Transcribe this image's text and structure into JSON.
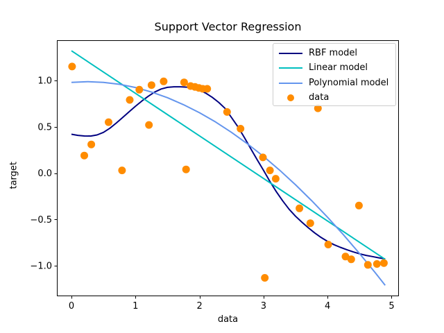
{
  "figure": {
    "background": "#ffffff",
    "text_color": "#000000",
    "spine_color": "#000000"
  },
  "legend": {
    "position": "upper right",
    "border_color": "#cccccc",
    "items": [
      {
        "label": "RBF model",
        "marker": "line",
        "color": "#000080"
      },
      {
        "label": "Linear model",
        "marker": "line",
        "color": "#00bfbf"
      },
      {
        "label": "Polynomial model",
        "marker": "line",
        "color": "#6495ed"
      },
      {
        "label": "data",
        "marker": "dot",
        "color": "#ff8c00"
      }
    ]
  },
  "chart_data": {
    "type": "line",
    "title": "Support Vector Regression",
    "xlabel": "data",
    "ylabel": "target",
    "grid": false,
    "legend_position": "upper right",
    "xlim": [
      -0.2275,
      5.114
    ],
    "ylim": [
      -1.328,
      1.434
    ],
    "x_ticks": [
      0,
      1,
      2,
      3,
      4,
      5
    ],
    "x_tick_labels": [
      "0",
      "1",
      "2",
      "3",
      "4",
      "5"
    ],
    "y_ticks": [
      1.0,
      0.5,
      0.0,
      -0.5,
      -1.0
    ],
    "y_tick_labels": [
      "1.0",
      "0.5",
      "0.0",
      "−0.5",
      "−1.0"
    ],
    "series": [
      {
        "name": "RBF model",
        "type": "line",
        "color": "#000080",
        "linewidth": 2,
        "points": [
          [
            0.0,
            0.42
          ],
          [
            0.1,
            0.408
          ],
          [
            0.2,
            0.401
          ],
          [
            0.3,
            0.4
          ],
          [
            0.4,
            0.412
          ],
          [
            0.5,
            0.44
          ],
          [
            0.6,
            0.485
          ],
          [
            0.7,
            0.54
          ],
          [
            0.8,
            0.6
          ],
          [
            0.9,
            0.662
          ],
          [
            1.0,
            0.722
          ],
          [
            1.1,
            0.778
          ],
          [
            1.2,
            0.83
          ],
          [
            1.3,
            0.875
          ],
          [
            1.4,
            0.908
          ],
          [
            1.5,
            0.926
          ],
          [
            1.6,
            0.932
          ],
          [
            1.7,
            0.932
          ],
          [
            1.8,
            0.928
          ],
          [
            1.9,
            0.916
          ],
          [
            2.0,
            0.895
          ],
          [
            2.1,
            0.862
          ],
          [
            2.2,
            0.818
          ],
          [
            2.3,
            0.763
          ],
          [
            2.4,
            0.698
          ],
          [
            2.5,
            0.6
          ],
          [
            2.6,
            0.5
          ],
          [
            2.7,
            0.385
          ],
          [
            2.8,
            0.265
          ],
          [
            2.9,
            0.145
          ],
          [
            3.0,
            0.03
          ],
          [
            3.1,
            -0.09
          ],
          [
            3.2,
            -0.2
          ],
          [
            3.3,
            -0.3
          ],
          [
            3.4,
            -0.39
          ],
          [
            3.5,
            -0.465
          ],
          [
            3.6,
            -0.53
          ],
          [
            3.7,
            -0.59
          ],
          [
            3.8,
            -0.645
          ],
          [
            3.9,
            -0.695
          ],
          [
            4.0,
            -0.737
          ],
          [
            4.1,
            -0.772
          ],
          [
            4.2,
            -0.8
          ],
          [
            4.3,
            -0.826
          ],
          [
            4.4,
            -0.85
          ],
          [
            4.5,
            -0.87
          ],
          [
            4.6,
            -0.887
          ],
          [
            4.7,
            -0.9
          ],
          [
            4.8,
            -0.913
          ],
          [
            4.9,
            -0.925
          ]
        ]
      },
      {
        "name": "Linear model",
        "type": "line",
        "color": "#00bfbf",
        "linewidth": 2,
        "points": [
          [
            0.0,
            1.32
          ],
          [
            4.9,
            -0.93
          ]
        ]
      },
      {
        "name": "Polynomial model",
        "type": "line",
        "color": "#6495ed",
        "linewidth": 2,
        "points": [
          [
            0.0,
            0.98
          ],
          [
            0.25,
            0.987
          ],
          [
            0.5,
            0.98
          ],
          [
            0.75,
            0.959
          ],
          [
            1.0,
            0.924
          ],
          [
            1.25,
            0.875
          ],
          [
            1.5,
            0.814
          ],
          [
            1.75,
            0.739
          ],
          [
            2.0,
            0.652
          ],
          [
            2.25,
            0.552
          ],
          [
            2.5,
            0.44
          ],
          [
            2.75,
            0.316
          ],
          [
            3.0,
            0.18
          ],
          [
            3.25,
            0.033
          ],
          [
            3.5,
            -0.126
          ],
          [
            3.75,
            -0.296
          ],
          [
            4.0,
            -0.476
          ],
          [
            4.25,
            -0.667
          ],
          [
            4.5,
            -0.868
          ],
          [
            4.75,
            -1.079
          ],
          [
            4.9,
            -1.21
          ]
        ]
      },
      {
        "name": "data",
        "type": "scatter",
        "color": "#ff8c00",
        "marker_radius": 5.5,
        "points": [
          [
            0.01,
            1.15
          ],
          [
            0.2,
            0.19
          ],
          [
            0.31,
            0.31
          ],
          [
            0.58,
            0.55
          ],
          [
            0.79,
            0.03
          ],
          [
            0.91,
            0.79
          ],
          [
            1.06,
            0.9
          ],
          [
            1.21,
            0.52
          ],
          [
            1.25,
            0.95
          ],
          [
            1.44,
            0.99
          ],
          [
            1.76,
            0.98
          ],
          [
            1.79,
            0.04
          ],
          [
            1.86,
            0.94
          ],
          [
            1.93,
            0.93
          ],
          [
            1.99,
            0.92
          ],
          [
            2.05,
            0.91
          ],
          [
            2.12,
            0.91
          ],
          [
            2.43,
            0.66
          ],
          [
            2.64,
            0.48
          ],
          [
            2.99,
            0.17
          ],
          [
            3.02,
            -1.13
          ],
          [
            3.1,
            0.03
          ],
          [
            3.19,
            -0.06
          ],
          [
            3.56,
            -0.38
          ],
          [
            3.73,
            -0.54
          ],
          [
            3.85,
            0.7
          ],
          [
            4.01,
            -0.77
          ],
          [
            4.28,
            -0.9
          ],
          [
            4.37,
            -0.93
          ],
          [
            4.49,
            -0.35
          ],
          [
            4.63,
            -0.99
          ],
          [
            4.77,
            -0.98
          ],
          [
            4.88,
            -0.97
          ]
        ]
      }
    ]
  }
}
